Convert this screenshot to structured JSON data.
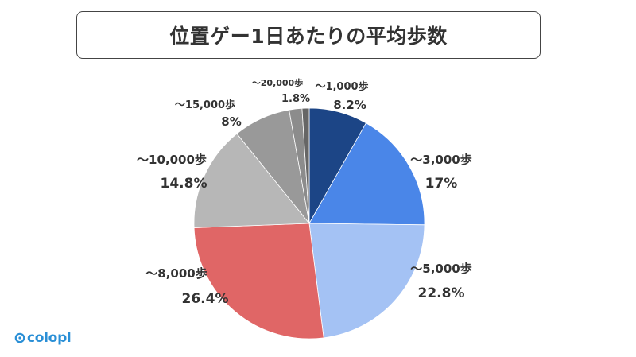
{
  "chart_data": {
    "type": "pie",
    "title": "位置ゲー1日あたりの平均歩数",
    "slices": [
      {
        "label": "～1,000歩",
        "value": 8.2,
        "display": "8.2%",
        "color": "#1c4586"
      },
      {
        "label": "～3,000歩",
        "value": 17,
        "display": "17%",
        "color": "#4a86e8"
      },
      {
        "label": "～5,000歩",
        "value": 22.8,
        "display": "22.8%",
        "color": "#a4c2f4"
      },
      {
        "label": "～8,000歩",
        "value": 26.4,
        "display": "26.4%",
        "color": "#e06666"
      },
      {
        "label": "～10,000歩",
        "value": 14.8,
        "display": "14.8%",
        "color": "#b7b7b7"
      },
      {
        "label": "～15,000歩",
        "value": 8,
        "display": "8%",
        "color": "#999999"
      },
      {
        "label": "～20,000歩",
        "value": 1.8,
        "display": "1.8%",
        "color": "#8c8c8c"
      },
      {
        "label": "",
        "value": 1.0,
        "display": "",
        "color": "#666666"
      }
    ]
  },
  "brand": {
    "logo_text": "colopl",
    "logo_color": "#2a8fd6"
  }
}
